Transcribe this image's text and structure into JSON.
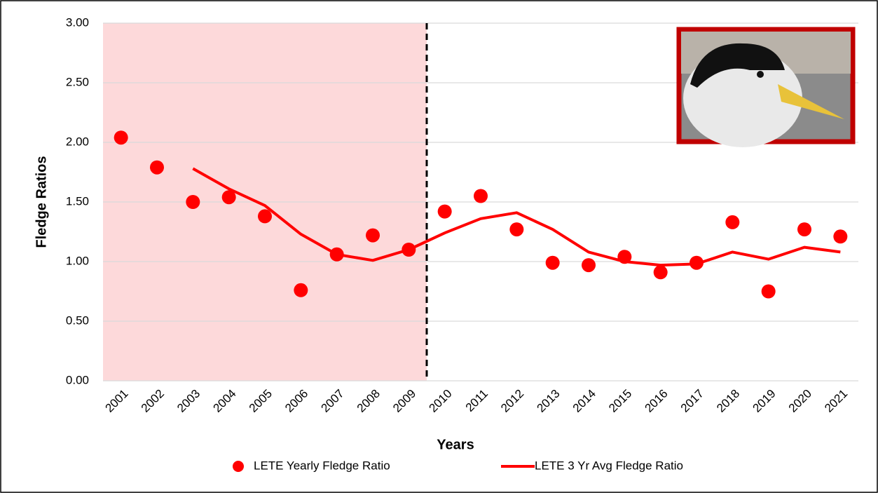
{
  "chart_data": {
    "type": "line",
    "x_label": "Years",
    "y_label": "Fledge Ratios",
    "categories": [
      "2001",
      "2002",
      "2003",
      "2004",
      "2005",
      "2006",
      "2007",
      "2008",
      "2009",
      "2010",
      "2011",
      "2012",
      "2013",
      "2014",
      "2015",
      "2016",
      "2017",
      "2018",
      "2019",
      "2020",
      "2021"
    ],
    "series": [
      {
        "name": "LETE Yearly Fledge Ratio",
        "color": "#ff0000",
        "mode": "markers",
        "values": [
          2.04,
          1.79,
          1.5,
          1.54,
          1.38,
          0.76,
          1.06,
          1.22,
          1.1,
          1.42,
          1.55,
          1.27,
          0.99,
          0.97,
          1.04,
          0.91,
          0.99,
          1.33,
          0.75,
          1.27,
          1.21
        ]
      },
      {
        "name": "LETE 3 Yr Avg Fledge Ratio",
        "color": "#ff0000",
        "mode": "line",
        "values": [
          null,
          null,
          1.78,
          1.61,
          1.47,
          1.23,
          1.06,
          1.01,
          1.1,
          1.24,
          1.36,
          1.41,
          1.27,
          1.08,
          1.0,
          0.97,
          0.98,
          1.08,
          1.02,
          1.12,
          1.08
        ]
      }
    ],
    "ylim": [
      0,
      3
    ],
    "yticks": [
      {
        "value": 0,
        "label": "0.00"
      },
      {
        "value": 0.5,
        "label": "0.50"
      },
      {
        "value": 1,
        "label": "1.00"
      },
      {
        "value": 1.5,
        "label": "1.50"
      },
      {
        "value": 2,
        "label": "2.00"
      },
      {
        "value": 2.5,
        "label": "2.50"
      },
      {
        "value": 3,
        "label": "3.00"
      }
    ],
    "grid": true,
    "highlight": {
      "from": "2001",
      "to": "2009",
      "color": "#fdd9da"
    },
    "legend": "bottom"
  }
}
